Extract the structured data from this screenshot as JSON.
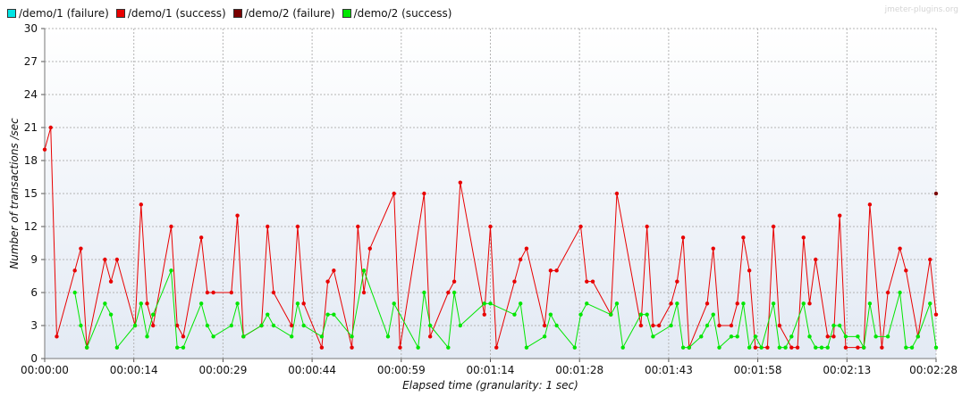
{
  "watermark": "jmeter-plugins.org",
  "chart_data": {
    "type": "line",
    "title": "",
    "xlabel": "Elapsed time (granularity: 1 sec)",
    "ylabel": "Number of transactions /sec",
    "ylim": [
      0,
      30
    ],
    "yticks": [
      0,
      3,
      6,
      9,
      12,
      15,
      18,
      21,
      24,
      27,
      30
    ],
    "ytick_labels": [
      "0",
      "3",
      "6",
      "9",
      "12",
      "15",
      "18",
      "21",
      "24",
      "27",
      "30"
    ],
    "xlim": [
      0,
      148
    ],
    "xticks": [
      0,
      14.8,
      29.6,
      44.4,
      59.2,
      74,
      88.8,
      103.6,
      118.4,
      133.2,
      148
    ],
    "xtick_labels": [
      "00:00:00",
      "00:00:14",
      "00:00:29",
      "00:00:44",
      "00:00:59",
      "00:01:14",
      "00:01:28",
      "00:01:43",
      "00:01:58",
      "00:02:13",
      "00:02:28"
    ],
    "grid": true,
    "legend_position": "top-left",
    "series": [
      {
        "name": "/demo/1 (failure)",
        "color": "#00e5e5",
        "points": []
      },
      {
        "name": "/demo/1 (success)",
        "color": "#e80000",
        "points": [
          [
            0,
            19
          ],
          [
            1,
            21
          ],
          [
            2,
            2
          ],
          [
            5,
            8
          ],
          [
            6,
            10
          ],
          [
            7,
            1
          ],
          [
            10,
            9
          ],
          [
            11,
            7
          ],
          [
            12,
            9
          ],
          [
            15,
            3
          ],
          [
            16,
            14
          ],
          [
            17,
            5
          ],
          [
            18,
            3
          ],
          [
            21,
            12
          ],
          [
            22,
            3
          ],
          [
            23,
            2
          ],
          [
            26,
            11
          ],
          [
            27,
            6
          ],
          [
            28,
            6
          ],
          [
            31,
            6
          ],
          [
            32,
            13
          ],
          [
            33,
            2
          ],
          [
            36,
            3
          ],
          [
            37,
            12
          ],
          [
            38,
            6
          ],
          [
            41,
            3
          ],
          [
            42,
            12
          ],
          [
            43,
            5
          ],
          [
            46,
            1
          ],
          [
            47,
            7
          ],
          [
            48,
            8
          ],
          [
            51,
            1
          ],
          [
            52,
            12
          ],
          [
            53,
            6
          ],
          [
            54,
            10
          ],
          [
            58,
            15
          ],
          [
            59,
            1
          ],
          [
            63,
            15
          ],
          [
            64,
            2
          ],
          [
            67,
            6
          ],
          [
            68,
            7
          ],
          [
            69,
            16
          ],
          [
            73,
            4
          ],
          [
            74,
            12
          ],
          [
            75,
            1
          ],
          [
            78,
            7
          ],
          [
            79,
            9
          ],
          [
            80,
            10
          ],
          [
            83,
            3
          ],
          [
            84,
            8
          ],
          [
            85,
            8
          ],
          [
            89,
            12
          ],
          [
            90,
            7
          ],
          [
            91,
            7
          ],
          [
            94,
            4
          ],
          [
            95,
            15
          ],
          [
            99,
            3
          ],
          [
            100,
            12
          ],
          [
            101,
            3
          ],
          [
            102,
            3
          ],
          [
            104,
            5
          ],
          [
            105,
            7
          ],
          [
            106,
            11
          ],
          [
            107,
            1
          ],
          [
            110,
            5
          ],
          [
            111,
            10
          ],
          [
            112,
            3
          ],
          [
            114,
            3
          ],
          [
            115,
            5
          ],
          [
            116,
            11
          ],
          [
            117,
            8
          ],
          [
            118,
            1
          ],
          [
            120,
            1
          ],
          [
            121,
            12
          ],
          [
            122,
            3
          ],
          [
            124,
            1
          ],
          [
            125,
            1
          ],
          [
            126,
            11
          ],
          [
            127,
            5
          ],
          [
            128,
            9
          ],
          [
            130,
            2
          ],
          [
            131,
            2
          ],
          [
            132,
            13
          ],
          [
            133,
            1
          ],
          [
            135,
            1
          ],
          [
            136,
            1
          ],
          [
            137,
            14
          ],
          [
            139,
            1
          ],
          [
            140,
            6
          ],
          [
            142,
            10
          ],
          [
            143,
            8
          ],
          [
            145,
            2
          ],
          [
            147,
            9
          ],
          [
            148,
            4
          ]
        ]
      },
      {
        "name": "/demo/2 (failure)",
        "color": "#7a0000",
        "points": [
          [
            148,
            15
          ]
        ]
      },
      {
        "name": "/demo/2 (success)",
        "color": "#00e600",
        "points": [
          [
            5,
            6
          ],
          [
            6,
            3
          ],
          [
            7,
            1
          ],
          [
            10,
            5
          ],
          [
            11,
            4
          ],
          [
            12,
            1
          ],
          [
            15,
            3
          ],
          [
            16,
            5
          ],
          [
            17,
            2
          ],
          [
            18,
            4
          ],
          [
            21,
            8
          ],
          [
            22,
            1
          ],
          [
            23,
            1
          ],
          [
            26,
            5
          ],
          [
            27,
            3
          ],
          [
            28,
            2
          ],
          [
            31,
            3
          ],
          [
            32,
            5
          ],
          [
            33,
            2
          ],
          [
            36,
            3
          ],
          [
            37,
            4
          ],
          [
            38,
            3
          ],
          [
            41,
            2
          ],
          [
            42,
            5
          ],
          [
            43,
            3
          ],
          [
            46,
            2
          ],
          [
            47,
            4
          ],
          [
            48,
            4
          ],
          [
            51,
            2
          ],
          [
            53,
            8
          ],
          [
            57,
            2
          ],
          [
            58,
            5
          ],
          [
            62,
            1
          ],
          [
            63,
            6
          ],
          [
            64,
            3
          ],
          [
            67,
            1
          ],
          [
            68,
            6
          ],
          [
            69,
            3
          ],
          [
            73,
            5
          ],
          [
            74,
            5
          ],
          [
            78,
            4
          ],
          [
            79,
            5
          ],
          [
            80,
            1
          ],
          [
            83,
            2
          ],
          [
            84,
            4
          ],
          [
            85,
            3
          ],
          [
            88,
            1
          ],
          [
            89,
            4
          ],
          [
            90,
            5
          ],
          [
            94,
            4
          ],
          [
            95,
            5
          ],
          [
            96,
            1
          ],
          [
            99,
            4
          ],
          [
            100,
            4
          ],
          [
            101,
            2
          ],
          [
            104,
            3
          ],
          [
            105,
            5
          ],
          [
            106,
            1
          ],
          [
            107,
            1
          ],
          [
            109,
            2
          ],
          [
            110,
            3
          ],
          [
            111,
            4
          ],
          [
            112,
            1
          ],
          [
            114,
            2
          ],
          [
            115,
            2
          ],
          [
            116,
            5
          ],
          [
            117,
            1
          ],
          [
            118,
            2
          ],
          [
            119,
            1
          ],
          [
            121,
            5
          ],
          [
            122,
            1
          ],
          [
            123,
            1
          ],
          [
            124,
            2
          ],
          [
            126,
            5
          ],
          [
            127,
            2
          ],
          [
            128,
            1
          ],
          [
            129,
            1
          ],
          [
            130,
            1
          ],
          [
            131,
            3
          ],
          [
            132,
            3
          ],
          [
            133,
            2
          ],
          [
            135,
            2
          ],
          [
            136,
            1
          ],
          [
            137,
            5
          ],
          [
            138,
            2
          ],
          [
            140,
            2
          ],
          [
            142,
            6
          ],
          [
            143,
            1
          ],
          [
            144,
            1
          ],
          [
            145,
            2
          ],
          [
            147,
            5
          ],
          [
            148,
            1
          ]
        ]
      }
    ]
  }
}
